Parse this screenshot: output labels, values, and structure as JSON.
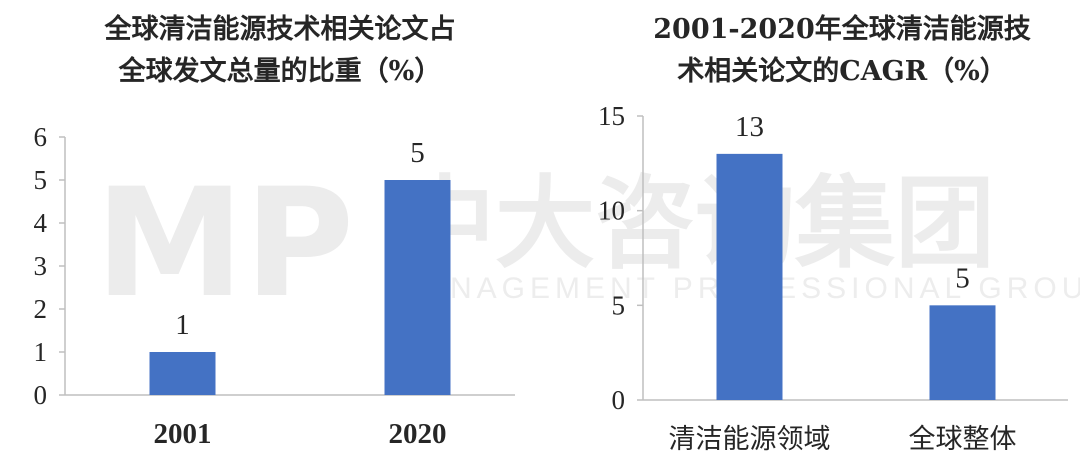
{
  "watermark": {
    "logo": "MP",
    "name": "中大咨询集团",
    "subtitle": "MANAGEMENT PROFESSIONAL GROUP"
  },
  "chart_data": [
    {
      "type": "bar",
      "title": "全球清洁能源技术相关论文占全球发文总量的比重（%）",
      "title_lines": [
        "全球清洁能源技术相关论文占",
        "全球发文总量的比重（%）"
      ],
      "categories": [
        "2001",
        "2020"
      ],
      "values": [
        1,
        5
      ],
      "data_labels": [
        "1",
        "5"
      ],
      "ylim": [
        0,
        6
      ],
      "yticks": [
        "0",
        "1",
        "2",
        "3",
        "4",
        "5",
        "6"
      ],
      "xlabel": "",
      "ylabel": "",
      "grid": false,
      "bar_color": "#4472C4"
    },
    {
      "type": "bar",
      "title": "2001-2020年全球清洁能源技术相关论文的CAGR（%）",
      "title_lines": [
        "2001-2020年全球清洁能源技",
        "术相关论文的CAGR（%）"
      ],
      "categories": [
        "清洁能源领域",
        "全球整体"
      ],
      "values": [
        13,
        5
      ],
      "data_labels": [
        "13",
        "5"
      ],
      "ylim": [
        0,
        15
      ],
      "yticks": [
        "0",
        "5",
        "10",
        "15"
      ],
      "xlabel": "",
      "ylabel": "",
      "grid": false,
      "bar_color": "#4472C4"
    }
  ]
}
